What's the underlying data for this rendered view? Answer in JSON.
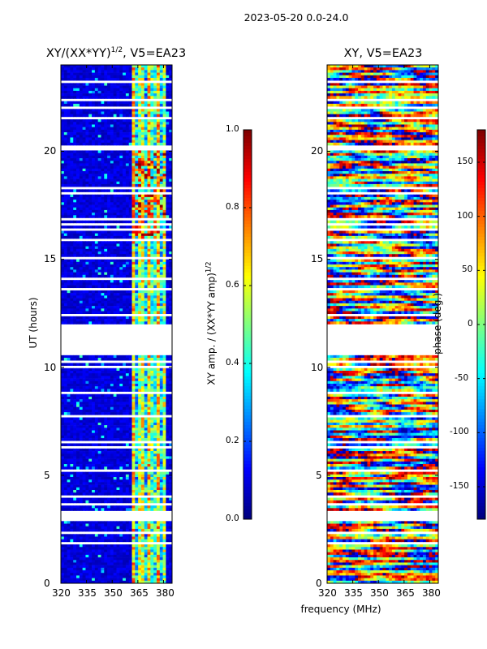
{
  "suptitle": "2023-05-20 0.0-24.0",
  "chart_data": [
    {
      "type": "heatmap",
      "title": "XY/(XX*YY)^{1/2}, V5=EA23",
      "title_main": "XY/(XX*YY)",
      "title_sup": "1/2",
      "title_tail": ", V5=EA23",
      "xlabel": "",
      "ylabel": "UT (hours)",
      "xlim": [
        320,
        385
      ],
      "ylim": [
        0,
        24
      ],
      "xticks": [
        "320",
        "335",
        "350",
        "365",
        "380"
      ],
      "yticks": [
        "0",
        "5",
        "10",
        "15",
        "20"
      ],
      "colorbar": {
        "label": "XY amp. / (XX*YY amp)^{1/2}",
        "label_main": "XY amp. / (XX*YY amp)",
        "label_sup": "1/2",
        "range": [
          0.0,
          1.0
        ],
        "ticks": [
          "0.0",
          "0.2",
          "0.4",
          "0.6",
          "0.8",
          "1.0"
        ],
        "colormap": "jet"
      },
      "gap_hours": [
        [
          10.6,
          12.0
        ]
      ],
      "high_amplitude_freq_range_MHz": [
        361,
        382
      ]
    },
    {
      "type": "heatmap",
      "title": "XY, V5=EA23",
      "xlabel": "frequency (MHz)",
      "ylabel": "",
      "xlim": [
        320,
        385
      ],
      "ylim": [
        0,
        24
      ],
      "xticks": [
        "320",
        "335",
        "350",
        "365",
        "380"
      ],
      "yticks": [
        "0",
        "5",
        "10",
        "15",
        "20"
      ],
      "colorbar": {
        "label": "phase (deg.)",
        "range": [
          -180,
          180
        ],
        "ticks": [
          "-150",
          "-100",
          "-50",
          "0",
          "50",
          "100",
          "150"
        ],
        "tick_values": [
          -150,
          -100,
          -50,
          0,
          50,
          100,
          150
        ],
        "colormap": "jet"
      },
      "gap_hours": [
        [
          10.6,
          12.0
        ]
      ]
    }
  ]
}
